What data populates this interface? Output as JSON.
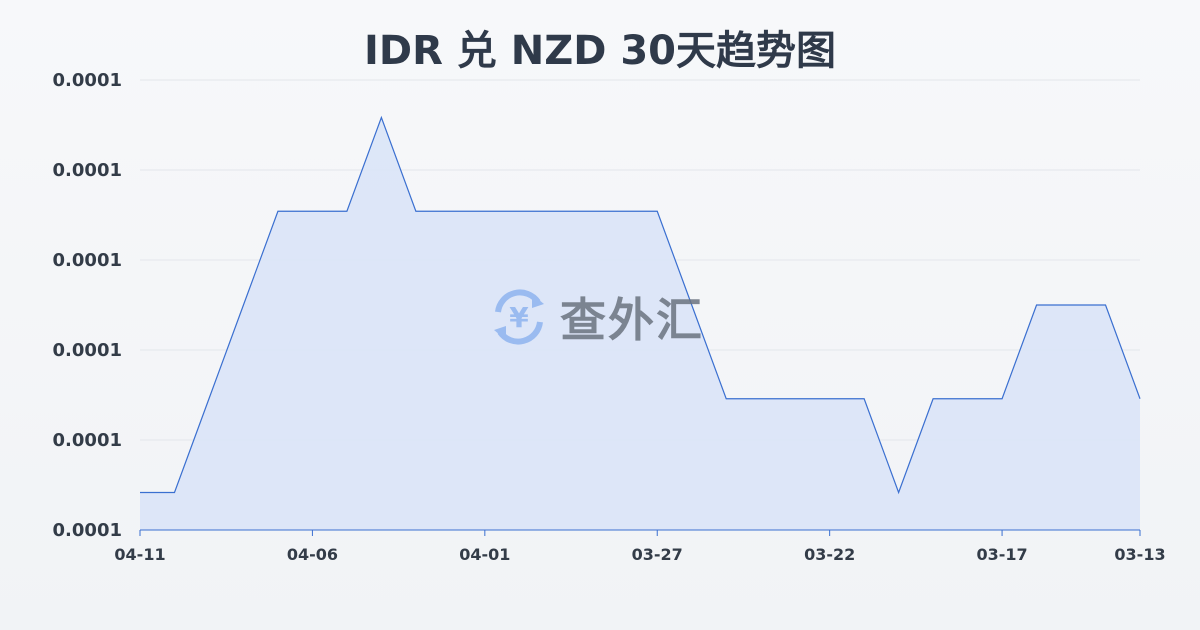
{
  "chart_data": {
    "type": "area",
    "title": "IDR 兑 NZD 30天趋势图",
    "xlabel": "",
    "ylabel": "",
    "x": [
      "04-11",
      "04-10",
      "04-09",
      "04-08",
      "04-07",
      "04-06",
      "04-05",
      "04-04",
      "04-03",
      "04-02",
      "04-01",
      "03-31",
      "03-30",
      "03-29",
      "03-28",
      "03-27",
      "03-26",
      "03-25",
      "03-24",
      "03-23",
      "03-22",
      "03-21",
      "03-20",
      "03-19",
      "03-18",
      "03-17",
      "03-16",
      "03-15",
      "03-14",
      "03-13"
    ],
    "values": [
      8.61e-05,
      8.61e-05,
      8.62e-05,
      8.63e-05,
      8.64e-05,
      8.64e-05,
      8.64e-05,
      8.65e-05,
      8.64e-05,
      8.64e-05,
      8.64e-05,
      8.64e-05,
      8.64e-05,
      8.64e-05,
      8.64e-05,
      8.64e-05,
      8.63e-05,
      8.62e-05,
      8.62e-05,
      8.62e-05,
      8.62e-05,
      8.62e-05,
      8.61e-05,
      8.62e-05,
      8.62e-05,
      8.62e-05,
      8.63e-05,
      8.63e-05,
      8.63e-05,
      8.62e-05
    ],
    "ylim": [
      8.606e-05,
      8.654e-05
    ],
    "y_tick_labels": [
      "0.0001",
      "0.0001",
      "0.0001",
      "0.0001",
      "0.0001",
      "0.0001"
    ],
    "x_tick_labels": [
      "04-11",
      "04-06",
      "04-01",
      "03-27",
      "03-22",
      "03-17",
      "03-13"
    ],
    "grid": true,
    "line_color": "#3a6fd0",
    "fill_color": "#dae4f7"
  },
  "watermark": {
    "text": "查外汇",
    "icon": "yen-exchange-icon"
  }
}
